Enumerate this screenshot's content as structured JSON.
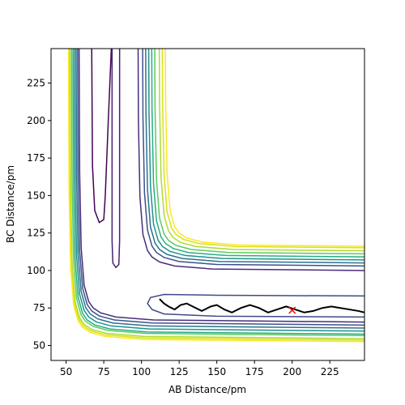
{
  "chart_data": {
    "type": "contour",
    "xlabel": "AB Distance/pm",
    "ylabel": "BC Distance/pm",
    "xlim": [
      40,
      248
    ],
    "ylim": [
      40,
      248
    ],
    "xticks": [
      50,
      75,
      100,
      125,
      150,
      175,
      200,
      225
    ],
    "yticks": [
      50,
      75,
      100,
      125,
      150,
      175,
      200,
      225
    ],
    "series": [
      {
        "color": "#440154",
        "x": [
          67,
          67.5,
          69,
          72,
          75,
          76,
          78,
          80
        ],
        "y": [
          248,
          170,
          140,
          132,
          134,
          150,
          200,
          248
        ]
      },
      {
        "color": "#482173",
        "x": [
          80.5,
          80.5,
          81,
          83,
          85,
          85.5,
          85.5
        ],
        "y": [
          248,
          120,
          105,
          102,
          104,
          120,
          248
        ]
      },
      {
        "color": "#3e4a89",
        "x": [
          248,
          150,
          115,
          106,
          104,
          107,
          115,
          150,
          248
        ],
        "y": [
          83,
          83.5,
          84,
          82,
          78,
          74,
          71,
          69.5,
          69
        ]
      },
      {
        "color": "#472d7b",
        "x": [
          58.45,
          59,
          60,
          62,
          65,
          68,
          73,
          83,
          108,
          258
        ],
        "y": [
          287,
          165,
          115,
          90,
          79.3,
          75,
          71.7,
          69,
          67,
          65.5
        ]
      },
      {
        "color": "#472d7b",
        "x": [
          97.45,
          98,
          99,
          101,
          104,
          107,
          112,
          122,
          147,
          297
        ],
        "y": [
          321,
          199,
          149,
          124,
          113.3,
          109,
          105.7,
          103,
          101,
          99.5
        ]
      },
      {
        "color": "#3b528b",
        "x": [
          57.45,
          58,
          59,
          61,
          64,
          67,
          72,
          82,
          107,
          257
        ],
        "y": [
          285,
          163,
          113,
          88,
          77.3,
          73,
          69.7,
          67,
          65,
          63.5
        ]
      },
      {
        "color": "#3b528b",
        "x": [
          100.45,
          101,
          102,
          104,
          107,
          110,
          115,
          125,
          150,
          300
        ],
        "y": [
          324,
          202,
          152,
          127,
          116.3,
          112,
          108.7,
          106,
          104,
          102.5
        ]
      },
      {
        "color": "#2c728e",
        "x": [
          56.45,
          57,
          58,
          60,
          63,
          66,
          71,
          81,
          106,
          256
        ],
        "y": [
          283,
          161,
          111,
          86,
          75.3,
          71,
          67.7,
          65,
          63,
          61.5
        ]
      },
      {
        "color": "#2c728e",
        "x": [
          102.45,
          103,
          104,
          106,
          109,
          112,
          117,
          127,
          152,
          302
        ],
        "y": [
          326,
          204,
          154,
          129,
          118.3,
          114,
          110.7,
          108,
          106,
          104.5
        ]
      },
      {
        "color": "#21918c",
        "x": [
          55.45,
          56,
          57,
          59,
          62,
          65,
          70,
          80,
          105,
          255
        ],
        "y": [
          281,
          159,
          109,
          84,
          73.3,
          69,
          65.7,
          63,
          61,
          59.5
        ]
      },
      {
        "color": "#21918c",
        "x": [
          104.45,
          105,
          106,
          108,
          111,
          114,
          119,
          129,
          154,
          304
        ],
        "y": [
          328,
          206,
          156,
          131,
          120.3,
          116,
          112.7,
          110,
          108,
          106.5
        ]
      },
      {
        "color": "#28ae80",
        "x": [
          54.45,
          55,
          56,
          58,
          61,
          64,
          69,
          79,
          104,
          254
        ],
        "y": [
          279,
          157,
          107,
          82,
          71.3,
          67,
          63.7,
          61,
          59,
          57.5
        ]
      },
      {
        "color": "#28ae80",
        "x": [
          106.45,
          107,
          108,
          110,
          113,
          116,
          121,
          131,
          156,
          306
        ],
        "y": [
          330,
          208,
          158,
          133,
          122.3,
          118,
          114.7,
          112,
          110,
          108.5
        ]
      },
      {
        "color": "#5ec962",
        "x": [
          53.45,
          54,
          55,
          57,
          60,
          63,
          68,
          78,
          103,
          253
        ],
        "y": [
          278,
          156,
          106,
          81,
          70.3,
          66,
          62.7,
          60,
          58,
          56.5
        ]
      },
      {
        "color": "#5ec962",
        "x": [
          108.45,
          109,
          110,
          112,
          115,
          118,
          123,
          133,
          158,
          308
        ],
        "y": [
          332,
          210,
          160,
          135,
          124.3,
          120,
          116.7,
          114,
          112,
          110.5
        ]
      },
      {
        "color": "#addc30",
        "x": [
          52.45,
          53,
          54,
          56,
          59,
          62,
          67,
          77,
          102,
          252
        ],
        "y": [
          276,
          154,
          104,
          79,
          68.3,
          64,
          60.7,
          58,
          56,
          54.5
        ]
      },
      {
        "color": "#addc30",
        "x": [
          111.45,
          112,
          113,
          115,
          118,
          121,
          126,
          136,
          161,
          311
        ],
        "y": [
          334,
          212,
          162,
          137,
          126.3,
          122,
          118.7,
          116,
          114,
          112.5
        ]
      },
      {
        "color": "#d8e219",
        "x": [
          51.95,
          52.5,
          53.5,
          55.5,
          58.5,
          61.5,
          66.5,
          76.5,
          101.5,
          251.5
        ],
        "y": [
          275,
          153,
          103,
          78,
          67.3,
          63,
          59.7,
          57,
          55,
          53.5
        ]
      },
      {
        "color": "#d8e219",
        "x": [
          113.45,
          114,
          115,
          117,
          120,
          123,
          128,
          138,
          163,
          313
        ],
        "y": [
          336,
          214,
          164,
          139,
          128.3,
          124,
          120.7,
          118,
          116,
          114.5
        ]
      },
      {
        "color": "#fde725",
        "x": [
          51.45,
          52,
          53,
          55,
          58,
          61,
          66,
          76,
          101,
          251
        ],
        "y": [
          274,
          152,
          102,
          77,
          66.3,
          62,
          58.7,
          56,
          54,
          52.5
        ]
      },
      {
        "color": "#fde725",
        "x": [
          115.45,
          116,
          117,
          119,
          122,
          125,
          130,
          140,
          165,
          315
        ],
        "y": [
          337,
          215,
          165,
          140,
          129.3,
          125,
          121.7,
          119,
          117,
          115.5
        ]
      }
    ],
    "trajectory": {
      "color": "#000000",
      "x": [
        112,
        115,
        118,
        122,
        126,
        130,
        134,
        140,
        146,
        150,
        155,
        160,
        166,
        172,
        178,
        184,
        190,
        196,
        202,
        208,
        214,
        220,
        226,
        232,
        238,
        244,
        248
      ],
      "y": [
        81,
        78,
        76,
        74,
        77,
        78,
        76,
        73,
        76,
        77,
        74,
        72,
        75,
        77,
        75,
        72,
        74,
        76,
        74,
        72,
        73,
        75,
        76,
        75,
        74,
        73,
        72
      ]
    },
    "marker": {
      "color": "#ff0000",
      "x": 200,
      "y": 73.5
    }
  }
}
